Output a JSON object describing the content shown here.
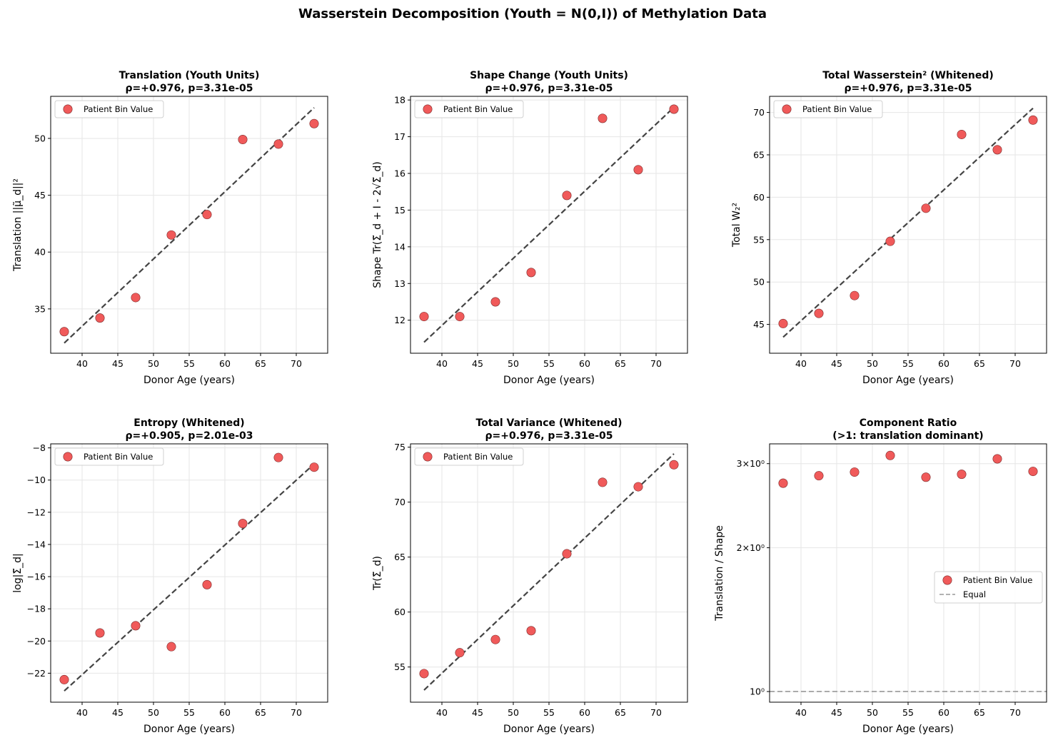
{
  "figure_title": "Wasserstein Decomposition (Youth = N(0,I)) of Methylation Data",
  "colors": {
    "point": "#f05a5a",
    "point_edge": "#7a2a2a",
    "fit": "#444444",
    "grid": "#e6e6e6",
    "equal_line": "#999999"
  },
  "chart_data": [
    {
      "type": "scatter",
      "title": "Translation (Youth Units)",
      "subtitle": "ρ=+0.976, p=3.31e-05",
      "xlabel": "Donor Age (years)",
      "ylabel": "Translation ||μ̃_d||²",
      "x": [
        37.5,
        42.5,
        47.5,
        52.5,
        57.5,
        62.5,
        67.5,
        72.5
      ],
      "y": [
        33.0,
        34.2,
        36.0,
        41.5,
        43.3,
        49.9,
        49.5,
        51.3
      ],
      "fit": {
        "x": [
          37.5,
          72.5
        ],
        "y": [
          32.0,
          52.7
        ]
      },
      "xlim": [
        35.6,
        74.4
      ],
      "ylim": [
        31.1,
        53.7
      ],
      "yscale": "linear",
      "xticks": [
        40,
        45,
        50,
        55,
        60,
        65,
        70
      ],
      "yticks": [
        35,
        40,
        45,
        50
      ],
      "ytick_labels": [
        "35",
        "40",
        "45",
        "50"
      ],
      "legend": [
        "Patient Bin Value"
      ],
      "legend_loc": "upper-left"
    },
    {
      "type": "scatter",
      "title": "Shape Change (Youth Units)",
      "subtitle": "ρ=+0.976, p=3.31e-05",
      "xlabel": "Donor Age (years)",
      "ylabel": "Shape Tr(Σ̃_d + I - 2√Σ̃_d)",
      "x": [
        37.5,
        42.5,
        47.5,
        52.5,
        57.5,
        62.5,
        67.5,
        72.5
      ],
      "y": [
        12.1,
        12.1,
        12.5,
        13.3,
        15.4,
        17.5,
        16.1,
        17.75
      ],
      "fit": {
        "x": [
          37.5,
          72.5
        ],
        "y": [
          11.4,
          17.8
        ]
      },
      "xlim": [
        35.6,
        74.4
      ],
      "ylim": [
        11.1,
        18.1
      ],
      "yscale": "linear",
      "xticks": [
        40,
        45,
        50,
        55,
        60,
        65,
        70
      ],
      "yticks": [
        12,
        13,
        14,
        15,
        16,
        17,
        18
      ],
      "ytick_labels": [
        "12",
        "13",
        "14",
        "15",
        "16",
        "17",
        "18"
      ],
      "legend": [
        "Patient Bin Value"
      ],
      "legend_loc": "upper-left"
    },
    {
      "type": "scatter",
      "title": "Total Wasserstein² (Whitened)",
      "subtitle": "ρ=+0.976, p=3.31e-05",
      "xlabel": "Donor Age (years)",
      "ylabel": "Total W₂²",
      "x": [
        37.5,
        42.5,
        47.5,
        52.5,
        57.5,
        62.5,
        67.5,
        72.5
      ],
      "y": [
        45.1,
        46.3,
        48.4,
        54.8,
        58.7,
        67.4,
        65.6,
        69.1
      ],
      "fit": {
        "x": [
          37.5,
          72.5
        ],
        "y": [
          43.5,
          70.5
        ]
      },
      "xlim": [
        35.6,
        74.4
      ],
      "ylim": [
        41.6,
        71.9
      ],
      "yscale": "linear",
      "xticks": [
        40,
        45,
        50,
        55,
        60,
        65,
        70
      ],
      "yticks": [
        45,
        50,
        55,
        60,
        65,
        70
      ],
      "ytick_labels": [
        "45",
        "50",
        "55",
        "60",
        "65",
        "70"
      ],
      "legend": [
        "Patient Bin Value"
      ],
      "legend_loc": "upper-left"
    },
    {
      "type": "scatter",
      "title": "Entropy (Whitened)",
      "subtitle": "ρ=+0.905, p=2.01e-03",
      "xlabel": "Donor Age (years)",
      "ylabel": "log|Σ̃_d|",
      "x": [
        37.5,
        42.5,
        47.5,
        52.5,
        57.5,
        62.5,
        67.5,
        72.5
      ],
      "y": [
        -22.4,
        -19.5,
        -19.05,
        -20.35,
        -16.5,
        -12.7,
        -8.6,
        -9.2
      ],
      "fit": {
        "x": [
          37.5,
          72.5
        ],
        "y": [
          -23.1,
          -9.0
        ]
      },
      "xlim": [
        35.6,
        74.4
      ],
      "ylim": [
        -23.8,
        -7.75
      ],
      "yscale": "linear",
      "xticks": [
        40,
        45,
        50,
        55,
        60,
        65,
        70
      ],
      "yticks": [
        -22,
        -20,
        -18,
        -16,
        -14,
        -12,
        -10,
        -8
      ],
      "ytick_labels": [
        "−22",
        "−20",
        "−18",
        "−16",
        "−14",
        "−12",
        "−10",
        "−8"
      ],
      "legend": [
        "Patient Bin Value"
      ],
      "legend_loc": "upper-left"
    },
    {
      "type": "scatter",
      "title": "Total Variance (Whitened)",
      "subtitle": "ρ=+0.976, p=3.31e-05",
      "xlabel": "Donor Age (years)",
      "ylabel": "Tr(Σ̃_d)",
      "x": [
        37.5,
        42.5,
        47.5,
        52.5,
        57.5,
        62.5,
        67.5,
        72.5
      ],
      "y": [
        54.4,
        56.3,
        57.5,
        58.3,
        65.3,
        71.8,
        71.4,
        73.4
      ],
      "fit": {
        "x": [
          37.5,
          72.5
        ],
        "y": [
          52.9,
          74.4
        ]
      },
      "xlim": [
        35.6,
        74.4
      ],
      "ylim": [
        51.8,
        75.3
      ],
      "yscale": "linear",
      "xticks": [
        40,
        45,
        50,
        55,
        60,
        65,
        70
      ],
      "yticks": [
        55,
        60,
        65,
        70,
        75
      ],
      "ytick_labels": [
        "55",
        "60",
        "65",
        "70",
        "75"
      ],
      "legend": [
        "Patient Bin Value"
      ],
      "legend_loc": "upper-left"
    },
    {
      "type": "scatter",
      "title": "Component Ratio",
      "subtitle": "(>1: translation dominant)",
      "xlabel": "Donor Age (years)",
      "ylabel": "Translation / Shape",
      "x": [
        37.5,
        42.5,
        47.5,
        52.5,
        57.5,
        62.5,
        67.5,
        72.5
      ],
      "y": [
        2.73,
        2.83,
        2.88,
        3.12,
        2.81,
        2.85,
        3.07,
        2.89
      ],
      "equal_line": 1,
      "xlim": [
        35.6,
        74.4
      ],
      "ylim": [
        0.95,
        3.3
      ],
      "yscale": "log",
      "xticks": [
        40,
        45,
        50,
        55,
        60,
        65,
        70
      ],
      "yticks": [
        1,
        2,
        3
      ],
      "ytick_labels": [
        "10⁰",
        "2×10⁰",
        "3×10⁰"
      ],
      "legend": [
        "Patient Bin Value",
        "Equal"
      ],
      "legend_loc": "center-right"
    }
  ]
}
